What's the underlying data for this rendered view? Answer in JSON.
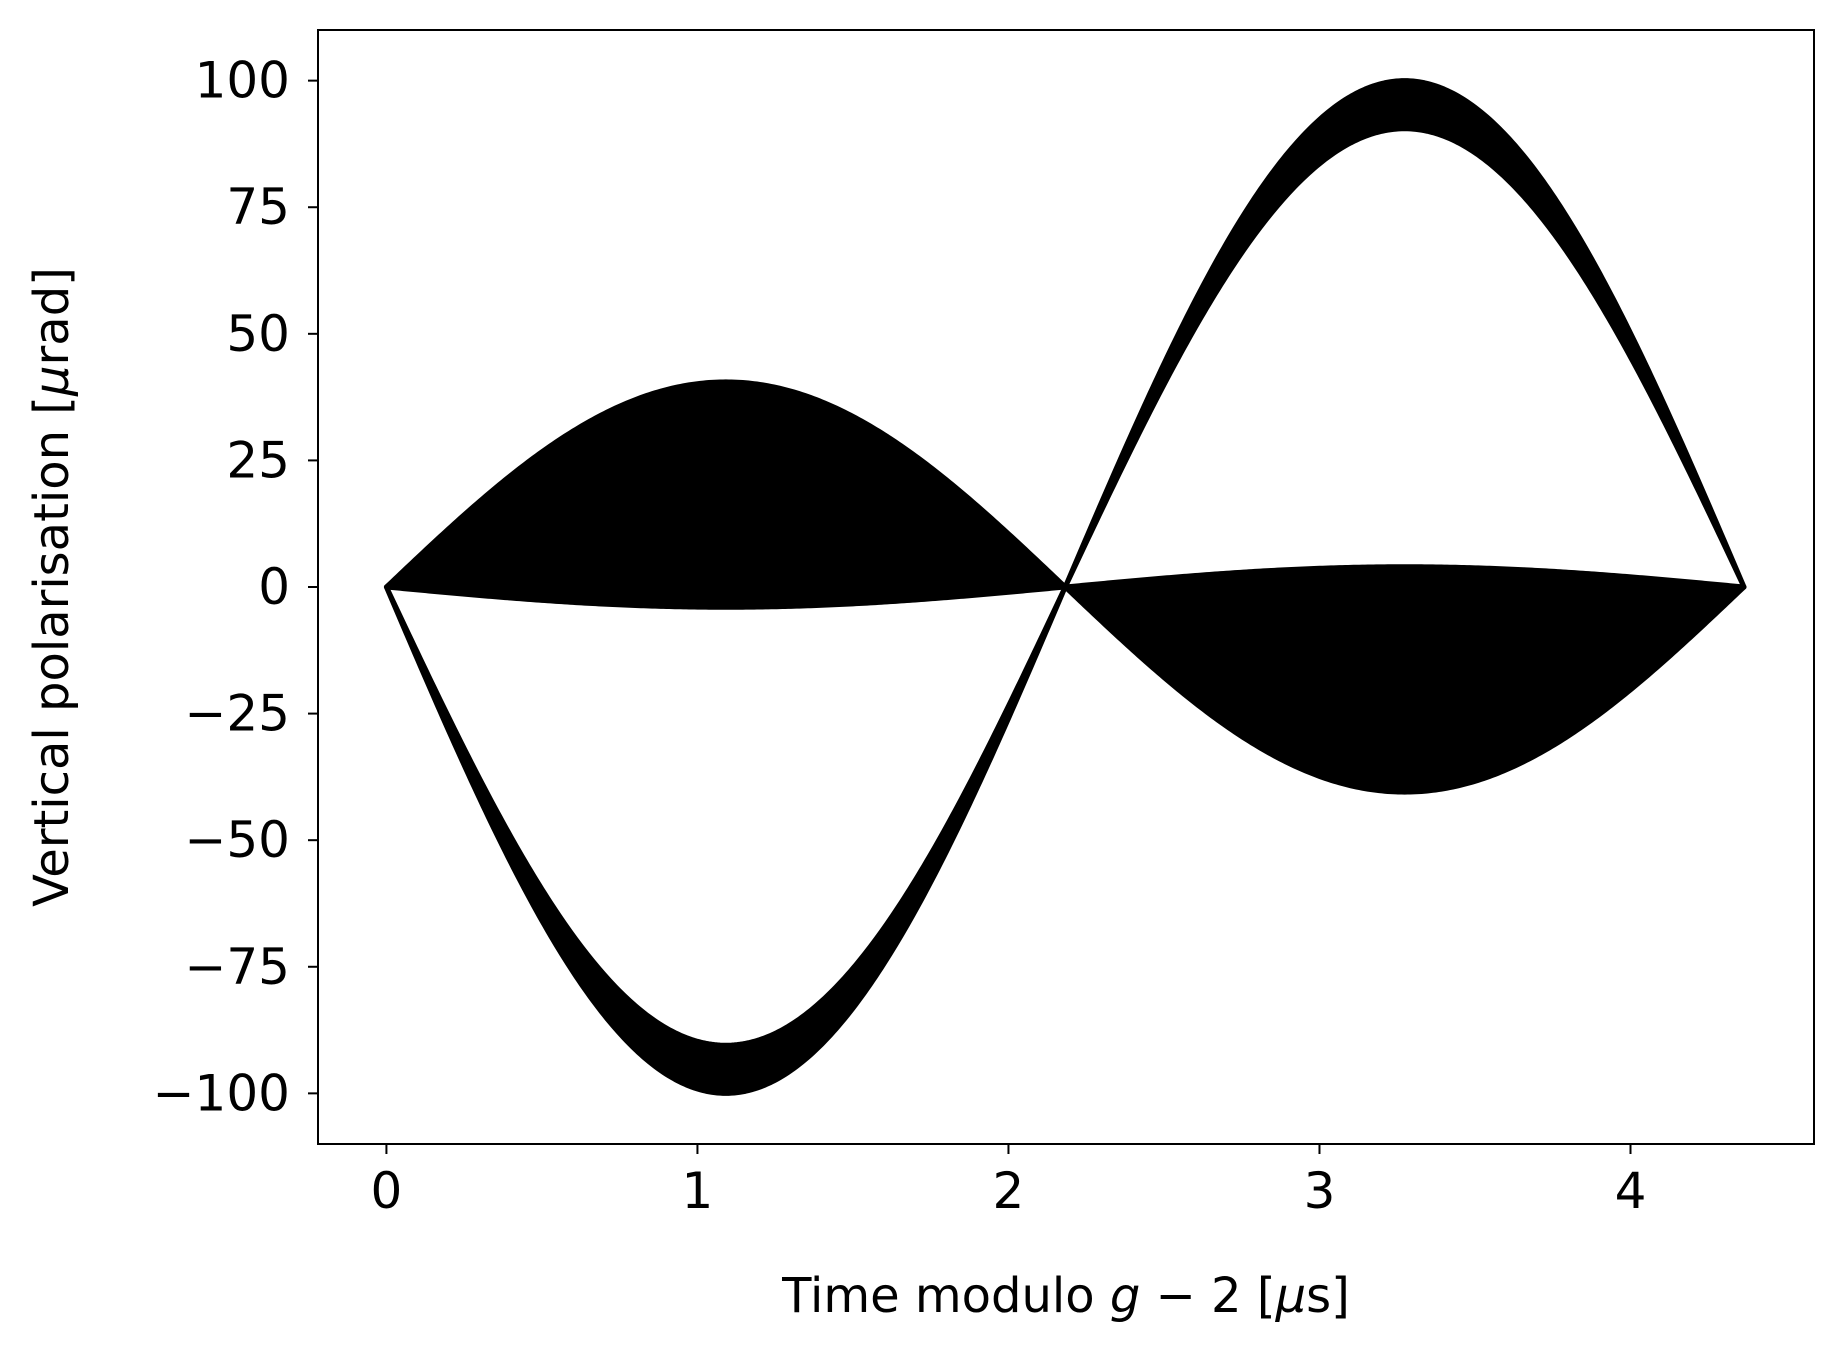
{
  "chart_data": {
    "type": "area",
    "title": "",
    "xlabel_parts": [
      "Time modulo ",
      "g",
      " − 2 [",
      "μ",
      "s]"
    ],
    "ylabel_parts": [
      "Vertical polarisation [",
      "μ",
      "rad]"
    ],
    "xlim": [
      -0.22,
      4.59
    ],
    "ylim": [
      -110,
      110
    ],
    "x_ticks": [
      0,
      1,
      2,
      3,
      4
    ],
    "x_tick_labels": [
      "0",
      "1",
      "2",
      "3",
      "4"
    ],
    "y_ticks": [
      100,
      75,
      50,
      25,
      0,
      -25,
      -50,
      -75,
      -100
    ],
    "y_tick_labels": [
      "100",
      "75",
      "50",
      "25",
      "0",
      "−25",
      "−50",
      "−75",
      "−100"
    ],
    "grid": false,
    "legend": "none",
    "period_us": 4.365,
    "series": [
      {
        "amplitude_outer": 40.5,
        "amplitude_inner": -4.0,
        "direction": 1,
        "color": "#000000"
      },
      {
        "amplitude_outer": -100.0,
        "amplitude_inner": -90.5,
        "direction": 1,
        "color": "#000000"
      },
      {
        "amplitude_outer": -40.5,
        "amplitude_inner": 4.0,
        "direction": -1,
        "color": "#000000"
      },
      {
        "amplitude_outer": 100.0,
        "amplitude_inner": 90.5,
        "direction": -1,
        "color": "#000000"
      }
    ],
    "colors": {
      "fill": "#000000",
      "axis": "#000000",
      "background": "#ffffff"
    }
  }
}
